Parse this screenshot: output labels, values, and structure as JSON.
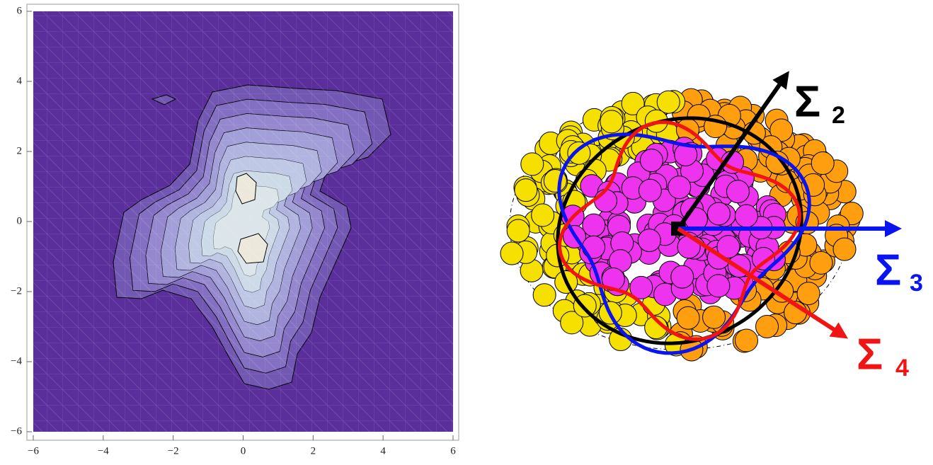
{
  "chart_data": {
    "type": "contour",
    "xlim": [
      -6,
      6
    ],
    "ylim": [
      -6,
      6
    ],
    "xticks": [
      {
        "value": -6,
        "label": "−6"
      },
      {
        "value": -4,
        "label": "−4"
      },
      {
        "value": -2,
        "label": "−2"
      },
      0,
      2,
      4,
      6
    ],
    "yticks": [
      {
        "value": -6,
        "label": "−6"
      },
      {
        "value": -4,
        "label": "−4"
      },
      {
        "value": -2,
        "label": "−2"
      },
      0,
      2,
      4,
      6
    ]
  },
  "diagram": {
    "labels": [
      {
        "symbol": "Σ",
        "subscript": "2",
        "color": "#000000"
      },
      {
        "symbol": "Σ",
        "subscript": "3",
        "color": "#0a14f0"
      },
      {
        "symbol": "Σ",
        "subscript": "4",
        "color": "#f01414"
      }
    ]
  }
}
